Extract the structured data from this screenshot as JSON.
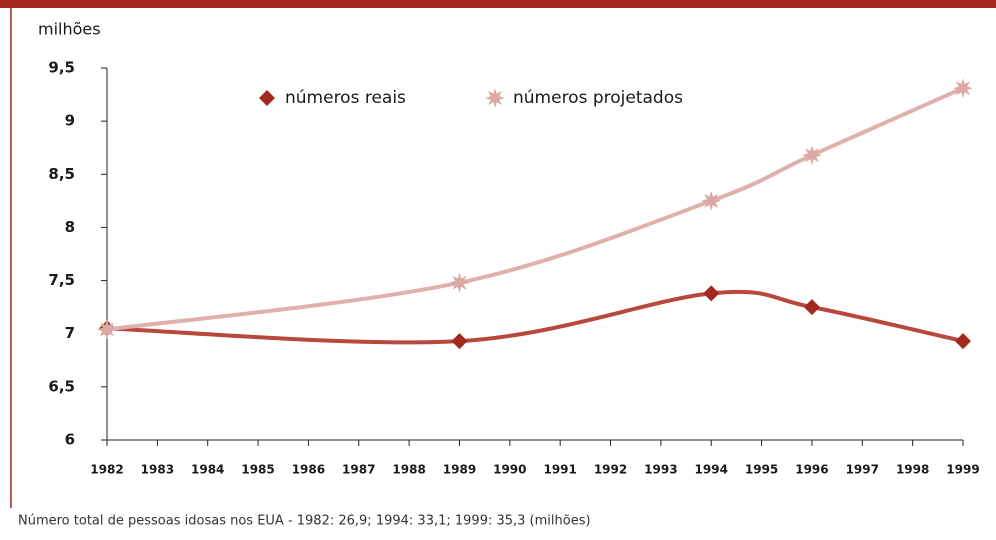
{
  "chart_data": {
    "type": "line",
    "y_label": "milhões",
    "note": "Número total de pessoas idosas nos EUA - 1982: 26,9; 1994: 33,1; 1999: 35,3 (milhões)",
    "x": [
      1982,
      1989,
      1994,
      1996,
      1999
    ],
    "series": [
      {
        "name": "números reais",
        "color": "#a3281d",
        "line_color": "#b8473c",
        "marker": "diamond",
        "values": [
          7.05,
          6.93,
          7.38,
          7.25,
          6.93
        ]
      },
      {
        "name": "números projetados",
        "color": "#dba8a4",
        "line_color": "#dfb0ac",
        "marker": "star",
        "values": [
          7.04,
          7.48,
          8.25,
          8.68,
          9.31
        ]
      }
    ],
    "xlim": [
      1982,
      1999
    ],
    "xticks": [
      1982,
      1983,
      1984,
      1985,
      1986,
      1987,
      1988,
      1989,
      1990,
      1991,
      1992,
      1993,
      1994,
      1995,
      1996,
      1997,
      1998,
      1999
    ],
    "ylim": [
      6,
      9.5
    ],
    "yticks": [
      6,
      {
        "value": 6.5,
        "label": "6,5"
      },
      7,
      {
        "value": 7.5,
        "label": "7,5"
      },
      8,
      {
        "value": 8.5,
        "label": "8,5"
      },
      9,
      {
        "value": 9.5,
        "label": "9,5"
      }
    ],
    "legend": "top"
  }
}
